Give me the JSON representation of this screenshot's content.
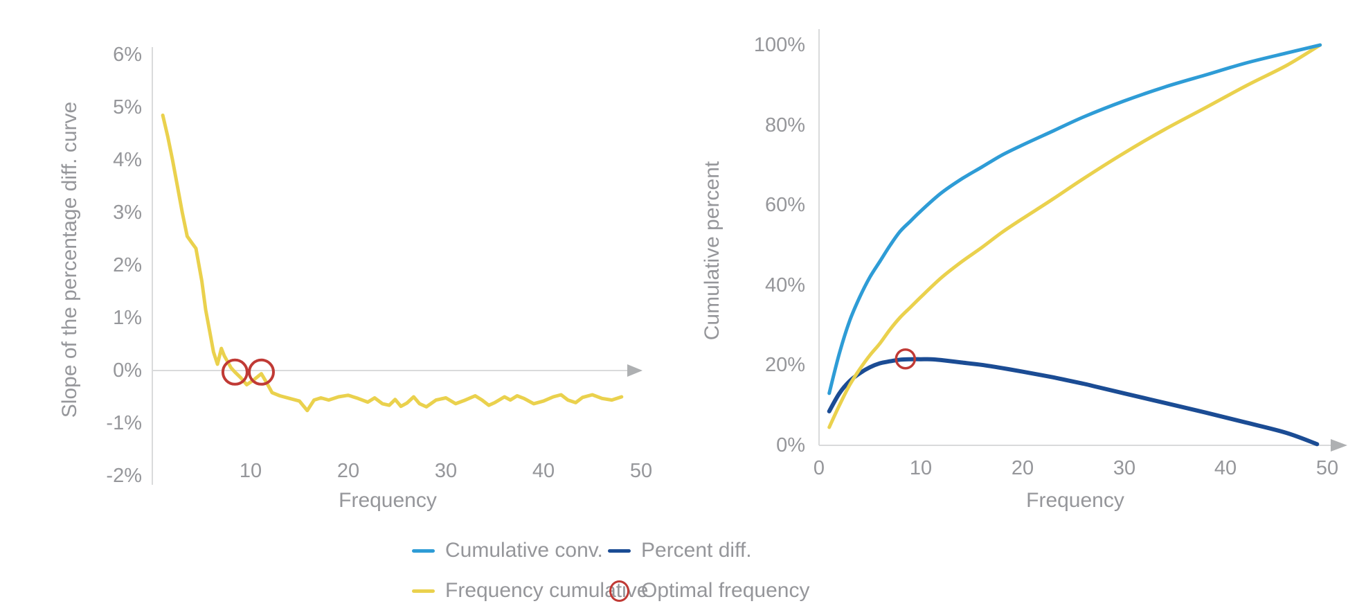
{
  "colors": {
    "text": "#95969a",
    "axis_line": "#d9dadb",
    "arrow": "#aeb0b2",
    "cumulative_conv": "#2E9CD6",
    "frequency_cumulative": "#EAD14D",
    "percent_diff": "#1B4C94",
    "optimal_frequency": "#C03A35"
  },
  "legend": {
    "items": [
      {
        "label": "Cumulative conv.",
        "swatch": "line",
        "color": "#2E9CD6"
      },
      {
        "label": "Percent diff.",
        "swatch": "line",
        "color": "#1B4C94"
      },
      {
        "label": "Frequency cumulative",
        "swatch": "line",
        "color": "#EAD14D"
      },
      {
        "label": "Optimal frequency",
        "swatch": "circle",
        "color": "#C03A35"
      }
    ]
  },
  "chart_data": [
    {
      "type": "line",
      "title": "",
      "xlabel": "Frequency",
      "ylabel": "Slope of the percentage diff. curve",
      "xlim": [
        0,
        50
      ],
      "ylim": [
        -2,
        6
      ],
      "y_unit": "%",
      "grid": false,
      "x_tick_values": [
        10,
        20,
        30,
        40,
        50
      ],
      "x_tick_labels": [
        "10",
        "20",
        "30",
        "40",
        "50"
      ],
      "y_tick_values": [
        6,
        5,
        4,
        3,
        2,
        1,
        0,
        -1,
        -2
      ],
      "y_tick_labels": [
        "6%",
        "5%",
        "4%",
        "3%",
        "2%",
        "1%",
        "0%",
        "-1%",
        "-2%"
      ],
      "series": [
        {
          "name": "Frequency cumulative",
          "color": "#EAD14D",
          "smooth": false,
          "points": [
            [
              1,
              4.85
            ],
            [
              1.5,
              4.45
            ],
            [
              2,
              4.0
            ],
            [
              2.5,
              3.5
            ],
            [
              3,
              3.0
            ],
            [
              3.5,
              2.55
            ],
            [
              4,
              2.42
            ],
            [
              4.4,
              2.32
            ],
            [
              5,
              1.7
            ],
            [
              5.4,
              1.15
            ],
            [
              5.8,
              0.75
            ],
            [
              6.2,
              0.35
            ],
            [
              6.6,
              0.12
            ],
            [
              7,
              0.42
            ],
            [
              7.3,
              0.28
            ],
            [
              8,
              0.05
            ],
            [
              8.4,
              -0.03
            ],
            [
              9,
              -0.14
            ],
            [
              9.6,
              -0.27
            ],
            [
              10.3,
              -0.18
            ],
            [
              11.1,
              -0.06
            ],
            [
              11.6,
              -0.22
            ],
            [
              12.2,
              -0.42
            ],
            [
              13,
              -0.48
            ],
            [
              14,
              -0.53
            ],
            [
              15,
              -0.58
            ],
            [
              15.8,
              -0.76
            ],
            [
              16.5,
              -0.56
            ],
            [
              17.2,
              -0.52
            ],
            [
              18,
              -0.56
            ],
            [
              19,
              -0.5
            ],
            [
              20,
              -0.47
            ],
            [
              21,
              -0.53
            ],
            [
              22,
              -0.6
            ],
            [
              22.7,
              -0.52
            ],
            [
              23.5,
              -0.63
            ],
            [
              24.2,
              -0.66
            ],
            [
              24.8,
              -0.55
            ],
            [
              25.4,
              -0.68
            ],
            [
              26,
              -0.62
            ],
            [
              26.7,
              -0.5
            ],
            [
              27.3,
              -0.63
            ],
            [
              28,
              -0.69
            ],
            [
              29,
              -0.56
            ],
            [
              30,
              -0.52
            ],
            [
              31,
              -0.63
            ],
            [
              32,
              -0.56
            ],
            [
              33,
              -0.48
            ],
            [
              33.7,
              -0.56
            ],
            [
              34.4,
              -0.66
            ],
            [
              35,
              -0.61
            ],
            [
              36,
              -0.5
            ],
            [
              36.6,
              -0.56
            ],
            [
              37.3,
              -0.48
            ],
            [
              38,
              -0.53
            ],
            [
              39,
              -0.63
            ],
            [
              40,
              -0.58
            ],
            [
              41,
              -0.5
            ],
            [
              41.8,
              -0.46
            ],
            [
              42.5,
              -0.56
            ],
            [
              43.3,
              -0.61
            ],
            [
              44,
              -0.51
            ],
            [
              45,
              -0.46
            ],
            [
              46,
              -0.53
            ],
            [
              47,
              -0.56
            ],
            [
              48,
              -0.5
            ]
          ]
        }
      ],
      "markers": [
        {
          "name": "Optimal frequency",
          "x": 8.4,
          "y": -0.03
        },
        {
          "name": "Optimal frequency",
          "x": 11.1,
          "y": -0.03
        }
      ],
      "marker_color": "#C03A35"
    },
    {
      "type": "line",
      "title": "",
      "xlabel": "Frequency",
      "ylabel": "Cumulative percent",
      "xlim": [
        0,
        50
      ],
      "ylim": [
        0,
        100
      ],
      "y_unit": "%",
      "grid": false,
      "x_tick_values": [
        0,
        10,
        20,
        30,
        40,
        50
      ],
      "x_tick_labels": [
        "0",
        "10",
        "20",
        "30",
        "40",
        "50"
      ],
      "y_tick_values": [
        100,
        80,
        60,
        40,
        20,
        0
      ],
      "y_tick_labels": [
        "100%",
        "80%",
        "60%",
        "40%",
        "20%",
        "0%"
      ],
      "series": [
        {
          "name": "Percent diff.",
          "color": "#1B4C94",
          "smooth": true,
          "points": [
            [
              1,
              8.5
            ],
            [
              2,
              13
            ],
            [
              3,
              16
            ],
            [
              4,
              18
            ],
            [
              5,
              19.5
            ],
            [
              6,
              20.5
            ],
            [
              7,
              21
            ],
            [
              8,
              21.4
            ],
            [
              9,
              21.5
            ],
            [
              10,
              21.5
            ],
            [
              11,
              21.5
            ],
            [
              12,
              21.3
            ],
            [
              14,
              20.7
            ],
            [
              16,
              20.1
            ],
            [
              18,
              19.3
            ],
            [
              20,
              18.4
            ],
            [
              23,
              17
            ],
            [
              26,
              15.4
            ],
            [
              27,
              14.8
            ],
            [
              30,
              13
            ],
            [
              34,
              10.6
            ],
            [
              38,
              8.2
            ],
            [
              42,
              5.7
            ],
            [
              46,
              3.1
            ],
            [
              49,
              0.3
            ]
          ]
        },
        {
          "name": "Frequency cumulative",
          "color": "#EAD14D",
          "smooth": true,
          "points": [
            [
              1,
              4.5
            ],
            [
              2,
              10
            ],
            [
              3,
              15
            ],
            [
              4,
              19
            ],
            [
              5,
              22.5
            ],
            [
              6,
              25.5
            ],
            [
              7,
              29
            ],
            [
              8,
              32
            ],
            [
              9,
              34.5
            ],
            [
              10,
              37
            ],
            [
              12,
              41.8
            ],
            [
              14,
              45.8
            ],
            [
              16,
              49.4
            ],
            [
              18,
              53.2
            ],
            [
              20,
              56.6
            ],
            [
              23,
              61.5
            ],
            [
              26,
              66.6
            ],
            [
              30,
              73
            ],
            [
              34,
              78.9
            ],
            [
              38,
              84.3
            ],
            [
              42,
              89.8
            ],
            [
              46,
              94.9
            ],
            [
              49.3,
              100
            ]
          ]
        },
        {
          "name": "Cumulative conv.",
          "color": "#2E9CD6",
          "smooth": true,
          "points": [
            [
              1,
              13
            ],
            [
              2,
              23
            ],
            [
              3,
              31
            ],
            [
              4,
              37
            ],
            [
              5,
              42
            ],
            [
              6,
              46
            ],
            [
              7,
              50
            ],
            [
              8,
              53.5
            ],
            [
              9,
              56
            ],
            [
              10,
              58.5
            ],
            [
              12,
              63
            ],
            [
              14,
              66.5
            ],
            [
              16,
              69.5
            ],
            [
              18,
              72.5
            ],
            [
              20,
              75
            ],
            [
              23,
              78.5
            ],
            [
              26,
              82
            ],
            [
              30,
              86
            ],
            [
              34,
              89.5
            ],
            [
              38,
              92.5
            ],
            [
              42,
              95.5
            ],
            [
              46,
              98
            ],
            [
              49.3,
              100
            ]
          ]
        }
      ],
      "markers": [
        {
          "name": "Optimal frequency",
          "x": 8.5,
          "y": 21.6
        }
      ],
      "marker_color": "#C03A35"
    }
  ]
}
